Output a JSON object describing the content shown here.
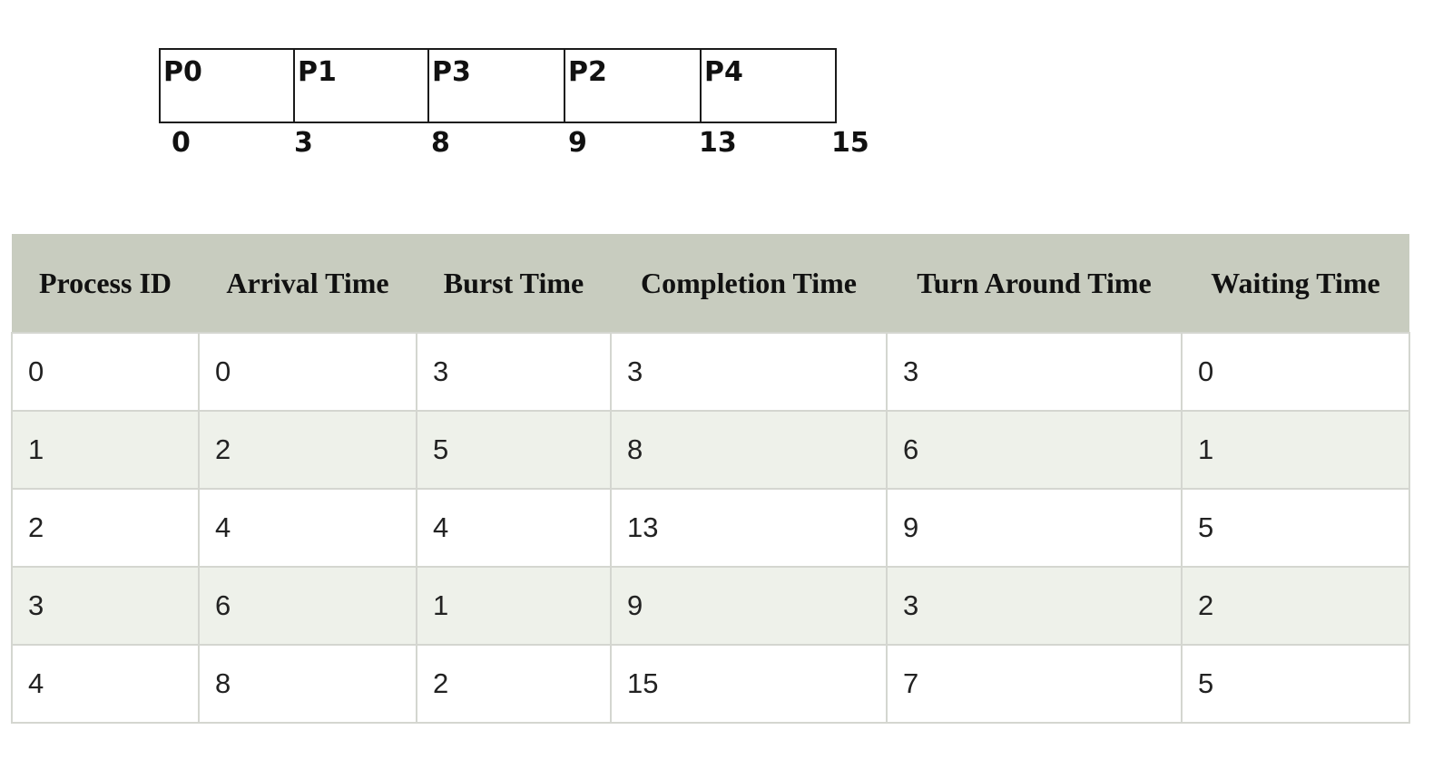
{
  "gantt": {
    "segments": [
      {
        "label": "P0",
        "start": 0,
        "end": 3
      },
      {
        "label": "P1",
        "start": 3,
        "end": 8
      },
      {
        "label": "P3",
        "start": 8,
        "end": 9
      },
      {
        "label": "P2",
        "start": 9,
        "end": 13
      },
      {
        "label": "P4",
        "start": 13,
        "end": 15
      }
    ],
    "ticks": [
      "0",
      "3",
      "8",
      "9",
      "13",
      "15"
    ]
  },
  "table": {
    "headers": [
      "Process ID",
      "Arrival Time",
      "Burst Time",
      "Completion Time",
      "Turn Around Time",
      "Waiting Time"
    ],
    "rows": [
      [
        "0",
        "0",
        "3",
        "3",
        "3",
        "0"
      ],
      [
        "1",
        "2",
        "5",
        "8",
        "6",
        "1"
      ],
      [
        "2",
        "4",
        "4",
        "13",
        "9",
        "5"
      ],
      [
        "3",
        "6",
        "1",
        "9",
        "3",
        "2"
      ],
      [
        "4",
        "8",
        "2",
        "15",
        "7",
        "5"
      ]
    ]
  }
}
